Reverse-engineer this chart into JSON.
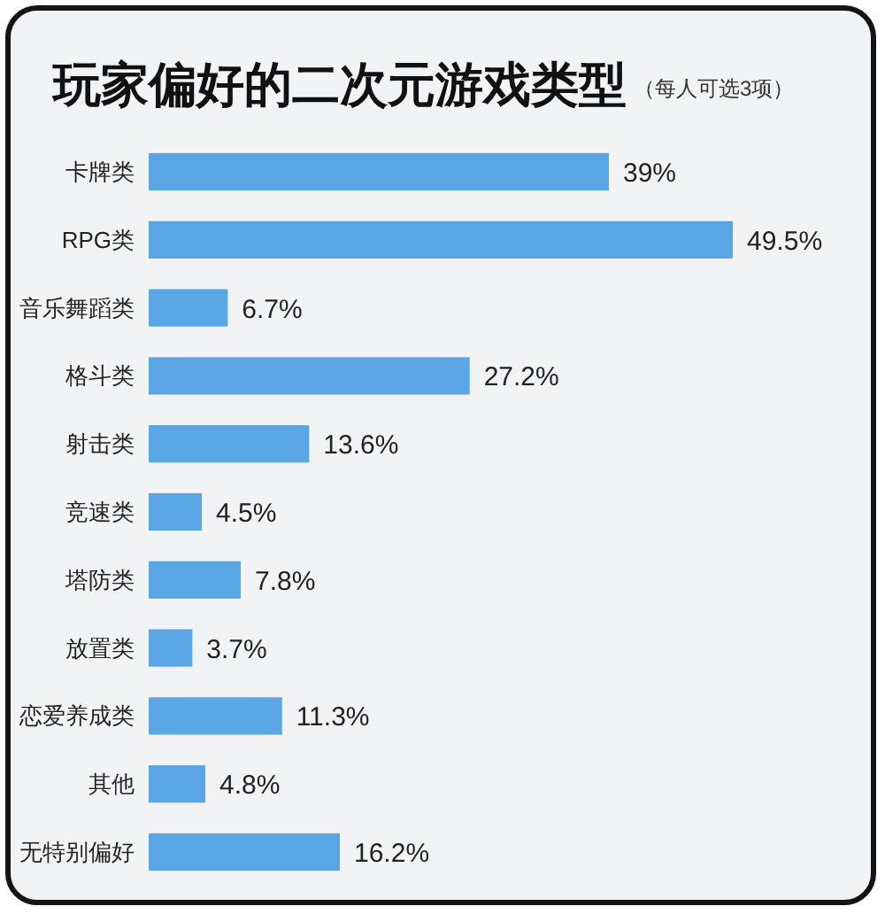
{
  "chart_data": {
    "type": "bar",
    "orientation": "horizontal",
    "title": "玩家偏好的二次元游戏类型",
    "subtitle": "（每人可选3项）",
    "categories": [
      "卡牌类",
      "RPG类",
      "音乐舞蹈类",
      "格斗类",
      "射击类",
      "竞速类",
      "塔防类",
      "放置类",
      "恋爱养成类",
      "其他",
      "无特别偏好"
    ],
    "values": [
      39,
      49.5,
      6.7,
      27.2,
      13.6,
      4.5,
      7.8,
      3.7,
      11.3,
      4.8,
      16.2
    ],
    "value_labels": [
      "39%",
      "49.5%",
      "6.7%",
      "27.2%",
      "13.6%",
      "4.5%",
      "7.8%",
      "3.7%",
      "11.3%",
      "4.8%",
      "16.2%"
    ],
    "color": "#5aa6e4"
  }
}
